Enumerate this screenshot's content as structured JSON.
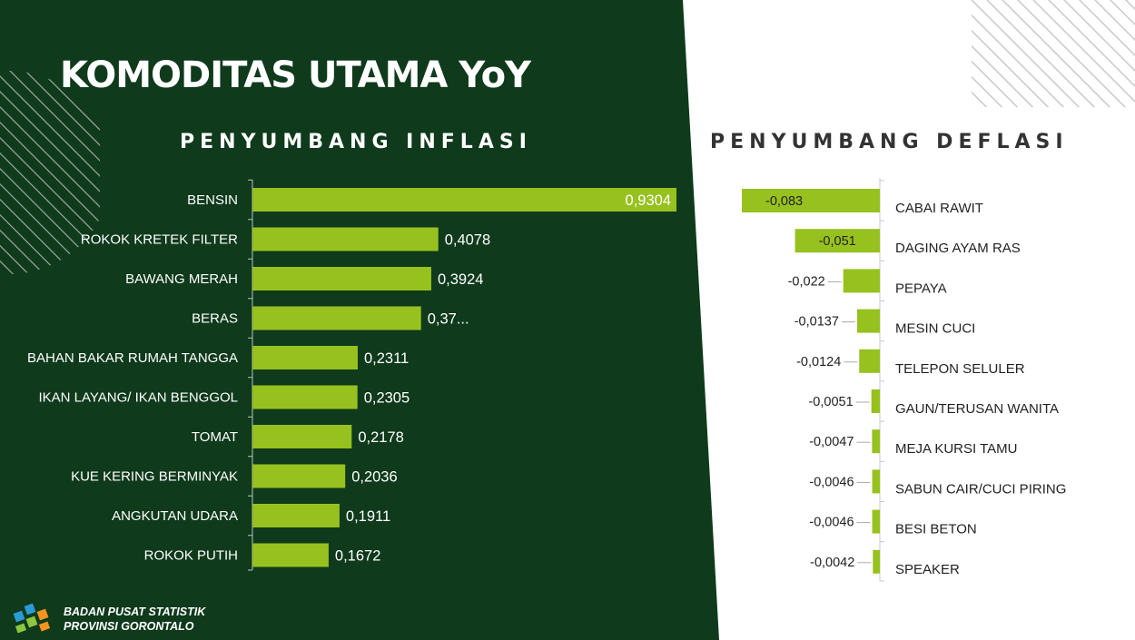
{
  "page": {
    "title": "KOMODITAS UTAMA YoY",
    "org_line1": "BADAN PUSAT STATISTIK",
    "org_line2": "PROVINSI GORONTALO",
    "colors": {
      "panel_dark": "#0f3a1c",
      "bar_green": "#97c11f",
      "label_white": "#ffffff",
      "label_dark": "#222222"
    }
  },
  "chart_data": [
    {
      "type": "bar",
      "orientation": "horizontal",
      "title": "PENYUMBANG INFLASI",
      "categories": [
        "BENSIN",
        "ROKOK KRETEK FILTER",
        "BAWANG MERAH",
        "BERAS",
        "BAHAN BAKAR RUMAH TANGGA",
        "IKAN LAYANG/ IKAN BENGGOL",
        "TOMAT",
        "KUE KERING BERMINYAK",
        "ANGKUTAN UDARA",
        "ROKOK PUTIH"
      ],
      "values": [
        0.9304,
        0.4078,
        0.3924,
        0.37,
        0.2311,
        0.2305,
        0.2178,
        0.2036,
        0.1911,
        0.1672
      ],
      "data_labels": [
        "0,9304",
        "0,4078",
        "0,3924",
        "0,37...",
        "0,2311",
        "0,2305",
        "0,2178",
        "0,2036",
        "0,1911",
        "0,1672"
      ],
      "xlim": [
        0,
        0.9304
      ]
    },
    {
      "type": "bar",
      "orientation": "horizontal",
      "title": "PENYUMBANG DEFLASI",
      "categories": [
        "CABAI RAWIT",
        "DAGING AYAM RAS",
        "PEPAYA",
        "MESIN CUCI",
        "TELEPON SELULER",
        "GAUN/TERUSAN WANITA",
        "MEJA KURSI TAMU",
        "SABUN CAIR/CUCI PIRING",
        "BESI BETON",
        "SPEAKER"
      ],
      "values": [
        -0.083,
        -0.051,
        -0.022,
        -0.0137,
        -0.0124,
        -0.0051,
        -0.0047,
        -0.0046,
        -0.0046,
        -0.0042
      ],
      "data_labels": [
        "-0,083",
        "-0,051",
        "-0,022",
        "-0,0137",
        "-0,0124",
        "-0,0051",
        "-0,0047",
        "-0,0046",
        "-0,0046",
        "-0,0042"
      ],
      "xlim": [
        -0.083,
        0
      ]
    }
  ]
}
